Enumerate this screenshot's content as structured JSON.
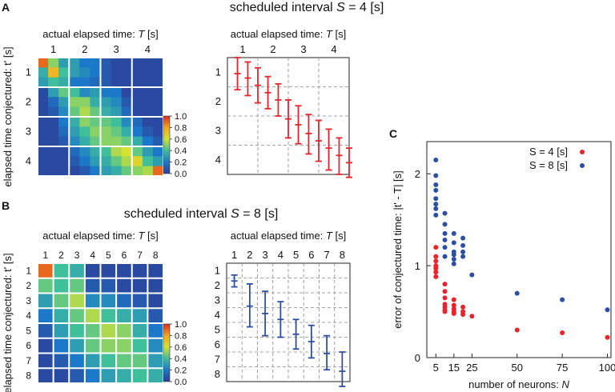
{
  "colors": {
    "red": "#e8232b",
    "blue": "#2e4fa0",
    "grid": "#888888"
  },
  "panels": {
    "a": "A",
    "b": "B",
    "c": "C"
  },
  "chart_data": [
    {
      "id": "A-heatmap",
      "type": "heatmap",
      "title_prefix": "scheduled interval ",
      "title_var": "S",
      "title_suffix": " = 4 [s]",
      "title_color": "#e8232b",
      "xlabel_prefix": "actual elapsed time: ",
      "xlabel_var": "T",
      "xlabel_suffix": " [s]",
      "ylabel": "elapsed time conjectured: t' [s]",
      "ticks": [
        "1",
        "2",
        "3",
        "4"
      ],
      "size": 12,
      "colorbar": {
        "min": 0.0,
        "max": 1.0,
        "ticks": [
          "1.0",
          "0.8",
          "0.6",
          "0.4",
          "0.2",
          "0.0"
        ]
      },
      "matrix": [
        [
          0.9,
          0.5,
          0.3,
          0.3,
          0.2,
          0.2,
          0.1,
          0.05,
          0.05,
          0.05,
          0.05,
          0.05
        ],
        [
          0.35,
          0.75,
          0.4,
          0.3,
          0.25,
          0.2,
          0.1,
          0.05,
          0.05,
          0.05,
          0.05,
          0.05
        ],
        [
          0.3,
          0.4,
          0.35,
          0.2,
          0.2,
          0.15,
          0.1,
          0.05,
          0.05,
          0.05,
          0.05,
          0.05
        ],
        [
          0.05,
          0.3,
          0.45,
          0.4,
          0.25,
          0.3,
          0.2,
          0.2,
          0.05,
          0.05,
          0.05,
          0.05
        ],
        [
          0.05,
          0.15,
          0.3,
          0.5,
          0.5,
          0.35,
          0.3,
          0.25,
          0.1,
          0.05,
          0.05,
          0.05
        ],
        [
          0.05,
          0.1,
          0.25,
          0.45,
          0.55,
          0.45,
          0.35,
          0.3,
          0.15,
          0.05,
          0.05,
          0.05
        ],
        [
          0.05,
          0.05,
          0.2,
          0.35,
          0.5,
          0.45,
          0.45,
          0.4,
          0.25,
          0.15,
          0.05,
          0.05
        ],
        [
          0.05,
          0.05,
          0.15,
          0.3,
          0.4,
          0.5,
          0.5,
          0.45,
          0.35,
          0.2,
          0.1,
          0.05
        ],
        [
          0.05,
          0.05,
          0.1,
          0.25,
          0.35,
          0.45,
          0.5,
          0.5,
          0.45,
          0.35,
          0.2,
          0.1
        ],
        [
          0.05,
          0.05,
          0.05,
          0.15,
          0.25,
          0.35,
          0.4,
          0.55,
          0.6,
          0.45,
          0.3,
          0.2
        ],
        [
          0.05,
          0.05,
          0.05,
          0.1,
          0.2,
          0.3,
          0.35,
          0.45,
          0.55,
          0.65,
          0.4,
          0.3
        ],
        [
          0.05,
          0.05,
          0.05,
          0.05,
          0.1,
          0.2,
          0.3,
          0.35,
          0.45,
          0.5,
          0.55,
          0.9
        ]
      ]
    },
    {
      "id": "A-errorbars",
      "type": "errorbar",
      "xlabel_prefix": "actual elapsed time: ",
      "xlabel_var": "T",
      "xlabel_suffix": " [s]",
      "ticks": [
        "1",
        "2",
        "3",
        "4"
      ],
      "x": [
        0.33,
        0.67,
        1.0,
        1.33,
        1.67,
        2.0,
        2.33,
        2.67,
        3.0,
        3.33,
        3.67,
        4.0
      ],
      "y": [
        0.55,
        0.7,
        0.95,
        1.2,
        1.45,
        2.1,
        2.3,
        2.6,
        2.85,
        3.1,
        3.35,
        3.6
      ],
      "low": [
        0.0,
        0.15,
        0.35,
        0.65,
        0.9,
        1.45,
        1.65,
        1.95,
        2.15,
        2.45,
        2.75,
        3.1
      ],
      "high": [
        1.1,
        1.3,
        1.55,
        1.75,
        2.0,
        2.75,
        2.95,
        3.3,
        3.55,
        3.85,
        4.0,
        4.1
      ],
      "color": "#e8232b"
    },
    {
      "id": "B-heatmap",
      "type": "heatmap",
      "title_prefix": "scheduled interval ",
      "title_var": "S",
      "title_suffix": " = 8 [s]",
      "title_color": "#2e4fa0",
      "xlabel_prefix": "actual elapsed time: ",
      "xlabel_var": "T",
      "xlabel_suffix": " [s]",
      "ylabel": "elapsed time conjectured: t' [s]",
      "ticks": [
        "1",
        "2",
        "3",
        "4",
        "5",
        "6",
        "7",
        "8"
      ],
      "size": 8,
      "colorbar": {
        "min": 0.0,
        "max": 1.0,
        "ticks": [
          "1.0",
          "0.8",
          "0.6",
          "0.4",
          "0.2",
          "0.0"
        ]
      },
      "matrix": [
        [
          0.9,
          0.4,
          0.35,
          0.05,
          0.05,
          0.05,
          0.05,
          0.05
        ],
        [
          0.45,
          0.4,
          0.45,
          0.1,
          0.1,
          0.05,
          0.05,
          0.05
        ],
        [
          0.3,
          0.45,
          0.55,
          0.25,
          0.25,
          0.15,
          0.1,
          0.05
        ],
        [
          0.2,
          0.35,
          0.45,
          0.55,
          0.4,
          0.35,
          0.3,
          0.1
        ],
        [
          0.1,
          0.3,
          0.4,
          0.45,
          0.55,
          0.5,
          0.35,
          0.2
        ],
        [
          0.05,
          0.2,
          0.3,
          0.45,
          0.5,
          0.5,
          0.4,
          0.25
        ],
        [
          0.05,
          0.1,
          0.2,
          0.3,
          0.4,
          0.45,
          0.45,
          0.3
        ],
        [
          0.05,
          0.05,
          0.1,
          0.2,
          0.3,
          0.35,
          0.4,
          0.35
        ]
      ]
    },
    {
      "id": "B-errorbars",
      "type": "errorbar",
      "xlabel_prefix": "actual elapsed time: ",
      "xlabel_var": "T",
      "xlabel_suffix": " [s]",
      "ticks": [
        "1",
        "2",
        "3",
        "4",
        "5",
        "6",
        "7",
        "8"
      ],
      "x": [
        1,
        2,
        3,
        4,
        5,
        6,
        7,
        8
      ],
      "y": [
        1.2,
        2.9,
        3.4,
        3.8,
        4.8,
        5.3,
        6.1,
        7.3
      ],
      "low": [
        0.8,
        1.4,
        1.9,
        2.6,
        3.8,
        4.2,
        4.9,
        6.0
      ],
      "high": [
        1.6,
        4.3,
        4.9,
        5.0,
        5.8,
        6.4,
        7.2,
        8.6
      ],
      "color": "#2e4fa0"
    },
    {
      "id": "C-scatter",
      "type": "scatter",
      "xlabel_prefix": "number of neurons: ",
      "xlabel_var": "N",
      "ylabel": "error of conjectured time: |t' - T| [s]",
      "xticks": [
        "5",
        "15",
        "25",
        "50",
        "75",
        "100"
      ],
      "yticks": [
        "0",
        "1",
        "2"
      ],
      "xlim": [
        0,
        102
      ],
      "ylim": [
        0,
        2.35
      ],
      "legend": [
        "S = 4 [s]",
        "S = 8 [s]"
      ],
      "series": [
        {
          "name": "S = 4 [s]",
          "color": "#e8232b",
          "x": [
            5,
            5,
            5,
            5,
            5,
            5,
            5,
            10,
            10,
            10,
            10,
            10,
            10,
            10,
            15,
            15,
            15,
            15,
            15,
            20,
            20,
            20,
            25,
            50,
            75,
            100
          ],
          "y": [
            1.2,
            1.1,
            1.05,
            1.0,
            0.97,
            0.93,
            0.88,
            0.8,
            0.72,
            0.65,
            0.58,
            0.55,
            0.52,
            0.5,
            0.63,
            0.57,
            0.53,
            0.5,
            0.48,
            0.55,
            0.5,
            0.47,
            0.45,
            0.3,
            0.27,
            0.22
          ]
        },
        {
          "name": "S = 8 [s]",
          "color": "#2e4fa0",
          "x": [
            5,
            5,
            5,
            5,
            5,
            5,
            5,
            5,
            10,
            10,
            10,
            10,
            10,
            10,
            15,
            15,
            15,
            15,
            15,
            15,
            20,
            20,
            20,
            20,
            25,
            50,
            75,
            100
          ],
          "y": [
            2.15,
            1.98,
            1.88,
            1.82,
            1.73,
            1.67,
            1.62,
            1.55,
            1.57,
            1.45,
            1.35,
            1.28,
            1.2,
            1.1,
            1.35,
            1.25,
            1.15,
            1.12,
            1.07,
            1.02,
            1.3,
            1.22,
            1.15,
            1.1,
            0.9,
            0.7,
            0.63,
            0.52
          ]
        }
      ]
    }
  ]
}
